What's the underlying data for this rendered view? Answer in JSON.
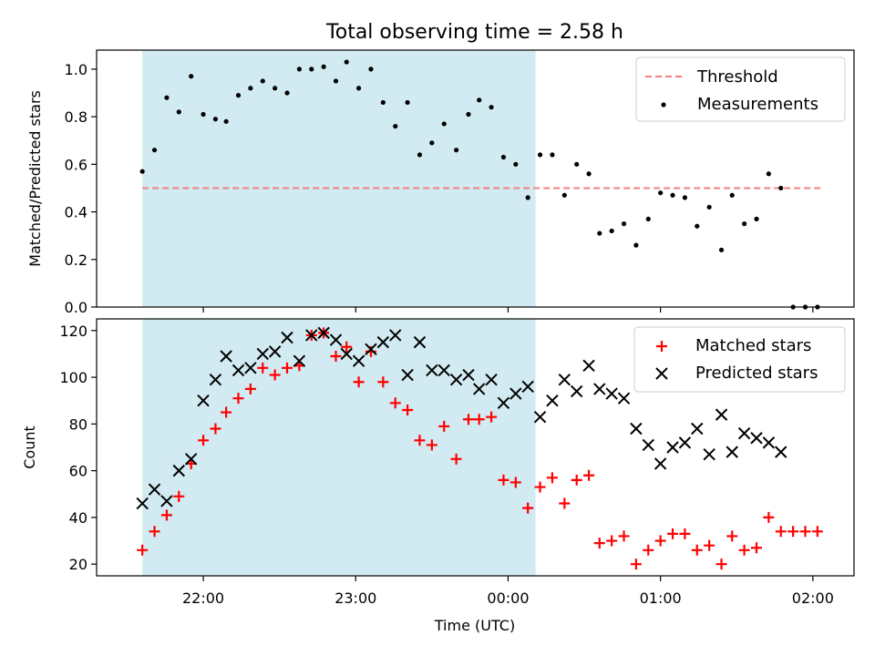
{
  "title": "Total observing time = 2.58 h",
  "x_axis": {
    "label": "Time (UTC)",
    "ticks": [
      "22:00",
      "23:00",
      "00:00",
      "01:00",
      "02:00"
    ],
    "tick_hours": [
      22,
      23,
      24,
      25,
      26
    ],
    "range_hours": [
      21.3,
      26.27
    ]
  },
  "observing_window_hours": [
    21.6,
    24.18
  ],
  "top_panel": {
    "ylabel": "Matched/Predicted stars",
    "ylim": [
      0,
      1.08
    ],
    "yticks": [
      "0.0",
      "0.2",
      "0.4",
      "0.6",
      "0.8",
      "1.0"
    ],
    "ytick_values": [
      0.0,
      0.2,
      0.4,
      0.6,
      0.8,
      1.0
    ],
    "legend": {
      "threshold_label": "Threshold",
      "measurements_label": "Measurements"
    }
  },
  "bottom_panel": {
    "ylabel": "Count",
    "ylim": [
      15,
      125
    ],
    "yticks": [
      "20",
      "40",
      "60",
      "80",
      "100",
      "120"
    ],
    "ytick_values": [
      20,
      40,
      60,
      80,
      100,
      120
    ],
    "legend": {
      "matched_label": "Matched stars",
      "predicted_label": "Predicted stars"
    }
  },
  "colors": {
    "shade": "#add8e6",
    "threshold": "#f08080",
    "matched": "#ff0000",
    "predicted": "#000000",
    "measurement": "#000000"
  },
  "chart_data": [
    {
      "type": "scatter",
      "title": "Total observing time = 2.58 h",
      "ylabel": "Matched/Predicted stars",
      "ylim": [
        0,
        1.08
      ],
      "threshold": {
        "name": "Threshold",
        "y": 0.5,
        "x_range": [
          21.6,
          26.05
        ]
      },
      "series": [
        {
          "name": "Measurements",
          "x": [
            21.6,
            21.68,
            21.76,
            21.84,
            21.92,
            22.0,
            22.08,
            22.15,
            22.23,
            22.31,
            22.39,
            22.47,
            22.55,
            22.63,
            22.71,
            22.79,
            22.87,
            22.94,
            23.02,
            23.1,
            23.18,
            23.26,
            23.34,
            23.42,
            23.5,
            23.58,
            23.66,
            23.74,
            23.81,
            23.89,
            23.97,
            24.05,
            24.13,
            24.21,
            24.29,
            24.37,
            24.45,
            24.53,
            24.6,
            24.68,
            24.76,
            24.84,
            24.92,
            25.0,
            25.08,
            25.16,
            25.24,
            25.32,
            25.4,
            25.47,
            25.55,
            25.63,
            25.71,
            25.79,
            25.87,
            25.95,
            26.03
          ],
          "y": [
            0.57,
            0.66,
            0.88,
            0.82,
            0.97,
            0.81,
            0.79,
            0.78,
            0.89,
            0.92,
            0.95,
            0.92,
            0.9,
            1.0,
            1.0,
            1.01,
            0.95,
            1.03,
            0.92,
            1.0,
            0.86,
            0.76,
            0.86,
            0.64,
            0.69,
            0.77,
            0.66,
            0.81,
            0.87,
            0.84,
            0.63,
            0.6,
            0.46,
            0.64,
            0.64,
            0.47,
            0.6,
            0.56,
            0.31,
            0.32,
            0.35,
            0.26,
            0.37,
            0.48,
            0.47,
            0.46,
            0.34,
            0.42,
            0.24,
            0.47,
            0.35,
            0.37,
            0.56,
            0.5,
            0.0,
            0.0,
            0.0
          ]
        }
      ]
    },
    {
      "type": "scatter",
      "ylabel": "Count",
      "xlabel": "Time (UTC)",
      "ylim": [
        15,
        125
      ],
      "series": [
        {
          "name": "Matched stars",
          "x": [
            21.6,
            21.68,
            21.76,
            21.84,
            21.92,
            22.0,
            22.08,
            22.15,
            22.23,
            22.31,
            22.39,
            22.47,
            22.55,
            22.63,
            22.71,
            22.79,
            22.87,
            22.94,
            23.02,
            23.1,
            23.18,
            23.26,
            23.34,
            23.42,
            23.5,
            23.58,
            23.66,
            23.74,
            23.81,
            23.89,
            23.97,
            24.05,
            24.13,
            24.21,
            24.29,
            24.37,
            24.45,
            24.53,
            24.6,
            24.68,
            24.76,
            24.84,
            24.92,
            25.0,
            25.08,
            25.16,
            25.24,
            25.32,
            25.4,
            25.47,
            25.55,
            25.63,
            25.71,
            25.79,
            25.87,
            25.95,
            26.03
          ],
          "y": [
            26,
            34,
            41,
            49,
            63,
            73,
            78,
            85,
            91,
            95,
            104,
            101,
            104,
            105,
            118,
            119,
            109,
            113,
            98,
            111,
            98,
            89,
            86,
            73,
            71,
            79,
            65,
            82,
            82,
            83,
            56,
            55,
            44,
            53,
            57,
            46,
            56,
            58,
            29,
            30,
            32,
            20,
            26,
            30,
            33,
            33,
            26,
            28,
            20,
            32,
            26,
            27,
            40,
            34,
            34,
            34,
            34
          ]
        },
        {
          "name": "Predicted stars",
          "x": [
            21.6,
            21.68,
            21.76,
            21.84,
            21.92,
            22.0,
            22.08,
            22.15,
            22.23,
            22.31,
            22.39,
            22.47,
            22.55,
            22.63,
            22.71,
            22.79,
            22.87,
            22.94,
            23.02,
            23.1,
            23.18,
            23.26,
            23.34,
            23.42,
            23.5,
            23.58,
            23.66,
            23.74,
            23.81,
            23.89,
            23.97,
            24.05,
            24.13,
            24.21,
            24.29,
            24.37,
            24.45,
            24.53,
            24.6,
            24.68,
            24.76,
            24.84,
            24.92,
            25.0,
            25.08,
            25.16,
            25.24,
            25.32,
            25.4,
            25.47,
            25.55,
            25.63,
            25.71,
            25.79
          ],
          "y": [
            46,
            52,
            47,
            60,
            65,
            90,
            99,
            109,
            103,
            104,
            110,
            111,
            117,
            107,
            118,
            119,
            116,
            110,
            107,
            112,
            115,
            118,
            101,
            115,
            103,
            103,
            99,
            101,
            95,
            99,
            89,
            93,
            96,
            83,
            90,
            99,
            94,
            105,
            95,
            93,
            91,
            78,
            71,
            63,
            70,
            72,
            78,
            67,
            84,
            68,
            76,
            74,
            72,
            68
          ]
        }
      ]
    }
  ]
}
